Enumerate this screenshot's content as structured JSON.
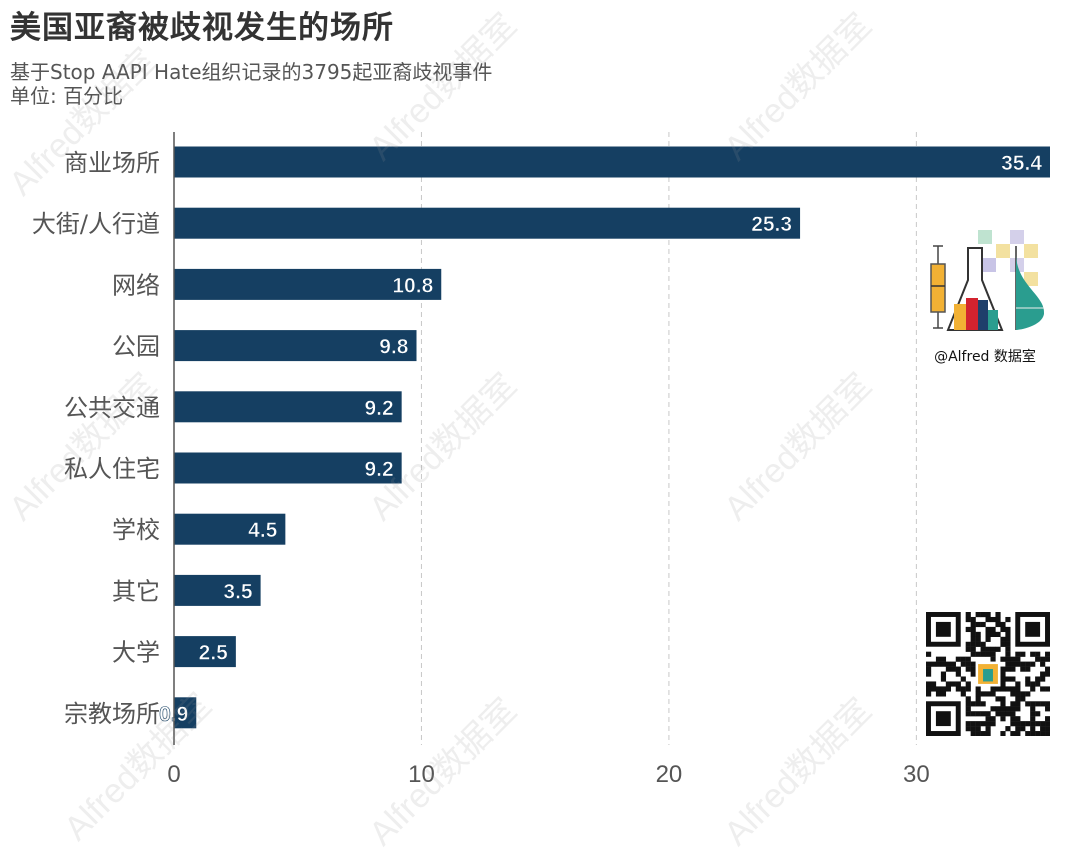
{
  "chart_data": {
    "type": "bar",
    "orientation": "horizontal",
    "title": "美国亚裔被歧视发生的场所",
    "subtitle": "基于Stop AAPI Hate组织记录的3795起亚裔歧视事件",
    "unit_label": "单位: 百分比",
    "categories": [
      "商业场所",
      "大街/人行道",
      "网络",
      "公园",
      "公共交通",
      "私人住宅",
      "学校",
      "其它",
      "大学",
      "宗教场所"
    ],
    "values": [
      35.4,
      25.3,
      10.8,
      9.8,
      9.2,
      9.2,
      4.5,
      3.5,
      2.5,
      0.9
    ],
    "value_labels": [
      "35.4",
      "25.3",
      "10.8",
      "9.8",
      "9.2",
      "9.2",
      "4.5",
      "3.5",
      "2.5",
      "0.9"
    ],
    "xlim": [
      0,
      35.4
    ],
    "xticks": [
      0,
      10,
      20,
      30
    ],
    "xtick_labels": [
      "0",
      "10",
      "20",
      "30"
    ],
    "grid": "vertical dashed",
    "bar_color": "#153f62",
    "label_color": "#ffffff"
  },
  "watermark": {
    "text": "Alfred数据室",
    "color": "#969696"
  },
  "logo": {
    "caption": "@Alfred 数据室"
  }
}
